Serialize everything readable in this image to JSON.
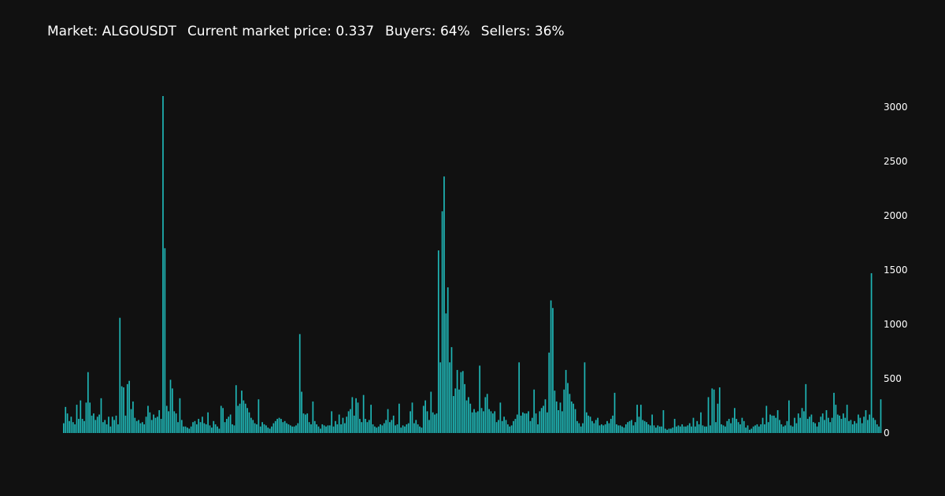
{
  "header": {
    "market": "Market: ALGOUSDT",
    "price": "Current market price: 0.337",
    "buyers": "Buyers: 64%",
    "sellers": "Sellers: 36%"
  },
  "chart_data": {
    "type": "bar",
    "title": "",
    "xlabel": "",
    "ylabel": "",
    "ylim": [
      0,
      3100
    ],
    "yticks": [
      0,
      500,
      1000,
      1500,
      2000,
      2500,
      3000
    ],
    "ytick_labels": [
      "0",
      "500",
      "1000",
      "1500",
      "2000",
      "2500",
      "3000"
    ],
    "y_axis_position": "right",
    "grid": false,
    "legend": "none",
    "bar_color": "#1fb5b5",
    "background": "#111111",
    "values": [
      90,
      240,
      180,
      110,
      150,
      100,
      80,
      260,
      130,
      300,
      130,
      110,
      280,
      560,
      280,
      160,
      180,
      120,
      150,
      170,
      320,
      100,
      120,
      80,
      150,
      60,
      150,
      120,
      160,
      80,
      1060,
      430,
      420,
      160,
      450,
      480,
      220,
      290,
      140,
      110,
      120,
      90,
      100,
      80,
      150,
      250,
      190,
      120,
      170,
      140,
      150,
      210,
      130,
      3100,
      1700,
      250,
      200,
      490,
      410,
      200,
      180,
      100,
      320,
      120,
      60,
      60,
      50,
      40,
      60,
      100,
      110,
      80,
      130,
      100,
      150,
      90,
      80,
      190,
      70,
      50,
      110,
      80,
      60,
      40,
      250,
      230,
      100,
      130,
      150,
      170,
      80,
      70,
      440,
      250,
      270,
      390,
      300,
      270,
      230,
      190,
      140,
      120,
      90,
      80,
      310,
      60,
      100,
      80,
      70,
      50,
      40,
      60,
      90,
      110,
      130,
      140,
      130,
      100,
      110,
      90,
      80,
      70,
      60,
      60,
      70,
      90,
      910,
      380,
      180,
      170,
      180,
      100,
      80,
      290,
      110,
      80,
      60,
      40,
      80,
      70,
      60,
      70,
      70,
      200,
      60,
      110,
      80,
      170,
      80,
      140,
      90,
      150,
      200,
      220,
      330,
      160,
      320,
      280,
      130,
      100,
      350,
      130,
      100,
      120,
      260,
      80,
      60,
      50,
      60,
      80,
      70,
      90,
      120,
      220,
      100,
      120,
      160,
      70,
      80,
      270,
      50,
      70,
      60,
      80,
      90,
      200,
      280,
      90,
      120,
      80,
      60,
      50,
      250,
      300,
      200,
      120,
      380,
      190,
      170,
      180,
      1680,
      650,
      2040,
      2360,
      1100,
      1340,
      650,
      790,
      340,
      410,
      580,
      400,
      560,
      570,
      450,
      300,
      330,
      270,
      190,
      220,
      190,
      200,
      620,
      230,
      200,
      330,
      360,
      220,
      200,
      180,
      200,
      100,
      120,
      280,
      110,
      150,
      120,
      80,
      60,
      70,
      110,
      130,
      170,
      650,
      160,
      190,
      180,
      180,
      200,
      110,
      140,
      400,
      180,
      80,
      200,
      230,
      250,
      310,
      190,
      740,
      1220,
      1150,
      390,
      290,
      210,
      280,
      200,
      400,
      580,
      460,
      360,
      290,
      270,
      220,
      110,
      90,
      60,
      90,
      650,
      190,
      160,
      150,
      110,
      90,
      120,
      140,
      70,
      80,
      70,
      80,
      110,
      90,
      130,
      160,
      370,
      80,
      70,
      70,
      60,
      50,
      80,
      100,
      110,
      120,
      70,
      100,
      260,
      150,
      260,
      120,
      110,
      100,
      80,
      70,
      170,
      70,
      50,
      70,
      60,
      60,
      210,
      40,
      30,
      40,
      40,
      50,
      130,
      60,
      70,
      60,
      80,
      60,
      60,
      70,
      90,
      60,
      140,
      60,
      110,
      80,
      190,
      70,
      60,
      60,
      330,
      70,
      410,
      400,
      100,
      270,
      420,
      80,
      70,
      60,
      110,
      130,
      90,
      140,
      230,
      130,
      100,
      80,
      140,
      110,
      50,
      70,
      30,
      40,
      60,
      70,
      80,
      60,
      80,
      140,
      80,
      250,
      100,
      170,
      160,
      160,
      140,
      210,
      120,
      80,
      60,
      70,
      110,
      300,
      70,
      60,
      140,
      90,
      180,
      140,
      230,
      200,
      450,
      130,
      150,
      170,
      100,
      90,
      60,
      100,
      150,
      180,
      120,
      210,
      140,
      100,
      140,
      370,
      260,
      170,
      160,
      130,
      180,
      140,
      260,
      110,
      120,
      80,
      110,
      90,
      170,
      140,
      90,
      150,
      210,
      120,
      170,
      1470,
      140,
      120,
      80,
      60,
      310
    ]
  }
}
